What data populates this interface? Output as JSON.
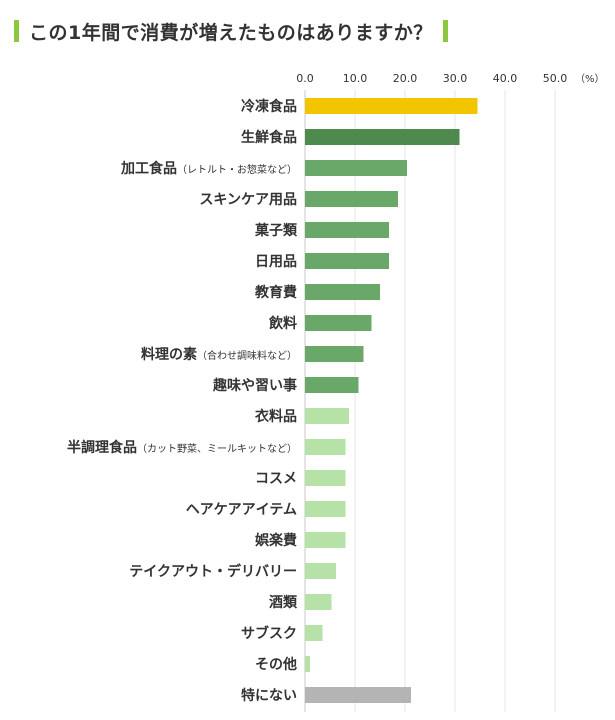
{
  "title": "この1年間で消費が増えたものはありますか？",
  "chart_data": {
    "type": "bar",
    "orientation": "horizontal",
    "xlim": [
      0,
      50
    ],
    "ticks": [
      "0.0",
      "10.0",
      "20.0",
      "30.0",
      "40.0",
      "50.0"
    ],
    "tick_values": [
      0,
      10,
      20,
      30,
      40,
      50
    ],
    "unit": "（%）",
    "grid": true,
    "categories": [
      {
        "main": "冷凍食品",
        "sub": ""
      },
      {
        "main": "生鮮食品",
        "sub": ""
      },
      {
        "main": "加工食品",
        "sub": "（レトルト・お惣菜など）"
      },
      {
        "main": "スキンケア用品",
        "sub": ""
      },
      {
        "main": "菓子類",
        "sub": ""
      },
      {
        "main": "日用品",
        "sub": ""
      },
      {
        "main": "教育費",
        "sub": ""
      },
      {
        "main": "飲料",
        "sub": ""
      },
      {
        "main": "料理の素",
        "sub": "（合わせ調味料など）"
      },
      {
        "main": "趣味や習い事",
        "sub": ""
      },
      {
        "main": "衣料品",
        "sub": ""
      },
      {
        "main": "半調理食品",
        "sub": "（カット野菜、ミールキットなど）"
      },
      {
        "main": "コスメ",
        "sub": ""
      },
      {
        "main": "ヘアケアアイテム",
        "sub": ""
      },
      {
        "main": "娯楽費",
        "sub": ""
      },
      {
        "main": "テイクアウト・デリバリー",
        "sub": ""
      },
      {
        "main": "酒類",
        "sub": ""
      },
      {
        "main": "サブスク",
        "sub": ""
      },
      {
        "main": "その他",
        "sub": ""
      },
      {
        "main": "特にない",
        "sub": ""
      }
    ],
    "values": [
      34.5,
      30.9,
      20.4,
      18.6,
      16.8,
      16.8,
      15.0,
      13.3,
      11.7,
      10.7,
      8.8,
      8.1,
      8.1,
      8.1,
      8.1,
      6.2,
      5.3,
      3.5,
      1.0,
      21.2
    ],
    "colors": [
      "#f2c500",
      "#4e8a4e",
      "#6aa86a",
      "#6aa86a",
      "#6aa86a",
      "#6aa86a",
      "#6aa86a",
      "#6aa86a",
      "#6aa86a",
      "#6aa86a",
      "#b6e2a8",
      "#b6e2a8",
      "#b6e2a8",
      "#b6e2a8",
      "#b6e2a8",
      "#b6e2a8",
      "#b6e2a8",
      "#b6e2a8",
      "#b6e2a8",
      "#b4b4b4"
    ],
    "gridline_color": "#e6e6e6",
    "axis_line_color": "#c8c8c8"
  }
}
